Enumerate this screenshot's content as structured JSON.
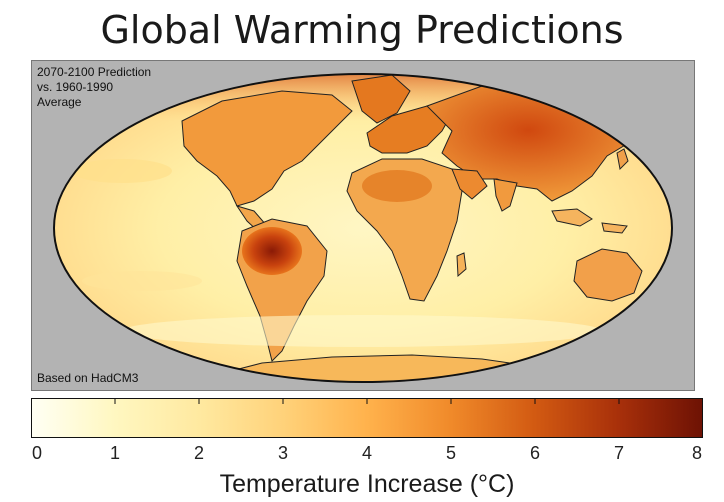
{
  "title": "Global Warming Predictions",
  "annotation_top": [
    "2070-2100 Prediction",
    "vs. 1960-1990",
    "Average"
  ],
  "annotation_bottom": "Based on HadCM3",
  "legend": {
    "label": "Temperature Increase (°C)",
    "min": 0,
    "max": 8,
    "ticks": [
      "0",
      "1",
      "2",
      "3",
      "4",
      "5",
      "6",
      "7",
      "8"
    ],
    "colors": [
      "#fffff4",
      "#fff7c0",
      "#ffe9a0",
      "#ffd27a",
      "#ffb24c",
      "#f08a2a",
      "#d25a12",
      "#a8300a",
      "#6e1204"
    ]
  },
  "map": {
    "projection": "Mollweide",
    "ocean_color": "#fff1a6",
    "background_color": "#b3b3b3"
  }
}
